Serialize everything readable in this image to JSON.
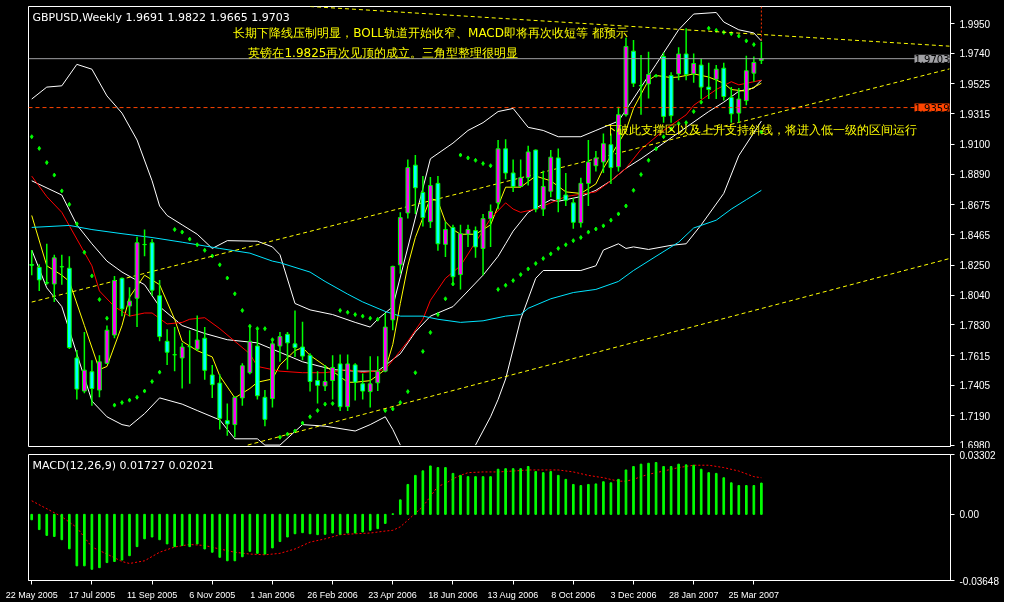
{
  "chart_data": [
    {
      "type": "candlestick",
      "title": "GBPUSD,Weekly  1.9691 1.9822 1.9665 1.9703",
      "tick_labels": "y",
      "x": [
        "2005-05-22",
        "2005-05-29",
        "2005-06-05",
        "2005-06-12",
        "2005-06-19",
        "2005-06-26",
        "2005-07-03",
        "2005-07-10",
        "2005-07-17",
        "2005-07-24",
        "2005-07-31",
        "2005-08-07",
        "2005-08-14",
        "2005-08-21",
        "2005-08-28",
        "2005-09-04",
        "2005-09-11",
        "2005-09-18",
        "2005-09-25",
        "2005-10-02",
        "2005-10-09",
        "2005-10-16",
        "2005-10-23",
        "2005-10-30",
        "2005-11-06",
        "2005-11-13",
        "2005-11-20",
        "2005-11-27",
        "2005-12-04",
        "2005-12-11",
        "2005-12-18",
        "2005-12-25",
        "2006-01-01",
        "2006-01-08",
        "2006-01-15",
        "2006-01-22",
        "2006-01-29",
        "2006-02-05",
        "2006-02-12",
        "2006-02-19",
        "2006-02-26",
        "2006-03-05",
        "2006-03-12",
        "2006-03-19",
        "2006-03-26",
        "2006-04-02",
        "2006-04-09",
        "2006-04-16",
        "2006-04-23",
        "2006-04-30",
        "2006-05-07",
        "2006-05-14",
        "2006-05-21",
        "2006-05-28",
        "2006-06-04",
        "2006-06-11",
        "2006-06-18",
        "2006-06-25",
        "2006-07-02",
        "2006-07-09",
        "2006-07-16",
        "2006-07-23",
        "2006-07-30",
        "2006-08-06",
        "2006-08-13",
        "2006-08-20",
        "2006-08-27",
        "2006-09-03",
        "2006-09-10",
        "2006-09-17",
        "2006-09-24",
        "2006-10-01",
        "2006-10-08",
        "2006-10-15",
        "2006-10-22",
        "2006-10-29",
        "2006-11-05",
        "2006-11-12",
        "2006-11-19",
        "2006-11-26",
        "2006-12-03",
        "2006-12-10",
        "2006-12-17",
        "2006-12-24",
        "2006-12-31",
        "2007-01-07",
        "2007-01-14",
        "2007-01-21",
        "2007-01-28",
        "2007-02-04",
        "2007-02-11",
        "2007-02-18",
        "2007-02-25",
        "2007-03-04",
        "2007-03-11",
        "2007-03-18",
        "2007-03-25",
        "2007-04-01"
      ],
      "ohlc": [
        [
          1.8255,
          1.8357,
          1.818,
          1.825
        ],
        [
          1.8235,
          1.8257,
          1.8069,
          1.8147
        ],
        [
          1.8127,
          1.8401,
          1.8113,
          1.8125
        ],
        [
          1.8118,
          1.8324,
          1.7992,
          1.8302
        ],
        [
          1.824,
          1.8324,
          1.8113,
          1.8239
        ],
        [
          1.8229,
          1.8313,
          1.766,
          1.7671
        ],
        [
          1.7598,
          1.7653,
          1.7306,
          1.7379
        ],
        [
          1.7365,
          1.7781,
          1.735,
          1.7512
        ],
        [
          1.7501,
          1.7582,
          1.7261,
          1.7383
        ],
        [
          1.7372,
          1.7616,
          1.7321,
          1.7571
        ],
        [
          1.756,
          1.7826,
          1.7556,
          1.7793
        ],
        [
          1.7759,
          1.8175,
          1.7737,
          1.8142
        ],
        [
          1.8158,
          1.8164,
          1.7892,
          1.7943
        ],
        [
          1.7963,
          1.8096,
          1.7892,
          1.7998
        ],
        [
          1.8018,
          1.845,
          1.7815,
          1.8408
        ],
        [
          1.8395,
          1.8501,
          1.8313,
          1.8396
        ],
        [
          1.8408,
          1.8434,
          1.8036,
          1.8074
        ],
        [
          1.8036,
          1.8147,
          1.7715,
          1.7748
        ],
        [
          1.7715,
          1.7799,
          1.7549,
          1.7638
        ],
        [
          1.7621,
          1.7815,
          1.7505,
          1.762
        ],
        [
          1.7598,
          1.7704,
          1.7383,
          1.7675
        ],
        [
          1.7677,
          1.7793,
          1.7416,
          1.7678
        ],
        [
          1.766,
          1.7897,
          1.7649,
          1.7724
        ],
        [
          1.7737,
          1.7815,
          1.7445,
          1.7511
        ],
        [
          1.7478,
          1.7549,
          1.7317,
          1.741
        ],
        [
          1.7421,
          1.7483,
          1.7095,
          1.7173
        ],
        [
          1.7157,
          1.7277,
          1.7051,
          1.7133
        ],
        [
          1.7129,
          1.7328,
          1.704,
          1.7321
        ],
        [
          1.7317,
          1.756,
          1.7261,
          1.7543
        ],
        [
          1.7494,
          1.7826,
          1.7483,
          1.7715
        ],
        [
          1.7682,
          1.7793,
          1.7306,
          1.7332
        ],
        [
          1.7321,
          1.7372,
          1.7118,
          1.7166
        ],
        [
          1.7312,
          1.7726,
          1.725,
          1.7697
        ],
        [
          1.7682,
          1.7781,
          1.7571,
          1.7748
        ],
        [
          1.7764,
          1.7781,
          1.7516,
          1.7704
        ],
        [
          1.7697,
          1.7932,
          1.7605,
          1.7671
        ],
        [
          1.7675,
          1.7852,
          1.7582,
          1.7611
        ],
        [
          1.7616,
          1.7631,
          1.7361,
          1.7432
        ],
        [
          1.7439,
          1.7505,
          1.7277,
          1.7405
        ],
        [
          1.7401,
          1.7549,
          1.7365,
          1.7432
        ],
        [
          1.7439,
          1.7616,
          1.7306,
          1.7531
        ],
        [
          1.7556,
          1.7622,
          1.7224,
          1.7255
        ],
        [
          1.7255,
          1.7622,
          1.7224,
          1.7556
        ],
        [
          1.7549,
          1.756,
          1.7299,
          1.7427
        ],
        [
          1.7416,
          1.7489,
          1.7306,
          1.7365
        ],
        [
          1.7361,
          1.7609,
          1.725,
          1.7416
        ],
        [
          1.7423,
          1.7609,
          1.7365,
          1.7505
        ],
        [
          1.7505,
          1.7914,
          1.7498,
          1.7815
        ],
        [
          1.7866,
          1.8246,
          1.7793,
          1.8242
        ],
        [
          1.8253,
          1.8622,
          1.8191,
          1.8585
        ],
        [
          1.8618,
          1.8994,
          1.8578,
          1.8937
        ],
        [
          1.8954,
          1.9025,
          1.8611,
          1.8795
        ],
        [
          1.8762,
          1.8877,
          1.8523,
          1.8585
        ],
        [
          1.8556,
          1.8871,
          1.8512,
          1.8811
        ],
        [
          1.8826,
          1.8877,
          1.8352,
          1.8401
        ],
        [
          1.8397,
          1.8556,
          1.8308,
          1.8501
        ],
        [
          1.8516,
          1.8534,
          1.8113,
          1.8169
        ],
        [
          1.8184,
          1.8534,
          1.808,
          1.8472
        ],
        [
          1.8468,
          1.8534,
          1.8379,
          1.8501
        ],
        [
          1.8494,
          1.8523,
          1.8302,
          1.8379
        ],
        [
          1.8368,
          1.8611,
          1.818,
          1.8578
        ],
        [
          1.8578,
          1.8678,
          1.8379,
          1.8629
        ],
        [
          1.8689,
          1.9131,
          1.8644,
          1.9069
        ],
        [
          1.9069,
          1.9136,
          1.8855,
          1.8899
        ],
        [
          1.8899,
          1.8994,
          1.8766,
          1.8804
        ],
        [
          1.8804,
          1.8994,
          1.8804,
          1.8866
        ],
        [
          1.8866,
          1.9091,
          1.8811,
          1.9047
        ],
        [
          1.906,
          1.9065,
          1.8622,
          1.8645
        ],
        [
          1.8645,
          1.8915,
          1.8596,
          1.8804
        ],
        [
          1.8771,
          1.906,
          1.8729,
          1.901
        ],
        [
          1.9005,
          1.9071,
          1.8622,
          1.8711
        ],
        [
          1.8744,
          1.8899,
          1.8667,
          1.8707
        ],
        [
          1.8689,
          1.8722,
          1.8507,
          1.8552
        ],
        [
          1.8549,
          1.8866,
          1.8516,
          1.8826
        ],
        [
          1.8826,
          1.9131,
          1.8667,
          1.8976
        ],
        [
          1.895,
          1.9054,
          1.891,
          1.9005
        ],
        [
          1.8976,
          1.9176,
          1.8899,
          1.9105
        ],
        [
          1.9098,
          1.9176,
          1.8822,
          1.8937
        ],
        [
          1.8943,
          1.9364,
          1.891,
          1.9309
        ],
        [
          1.9309,
          1.9851,
          1.9297,
          1.9789
        ],
        [
          1.9756,
          1.9835,
          1.9503,
          1.953
        ],
        [
          1.9514,
          1.9729,
          1.9309,
          1.9512
        ],
        [
          1.9525,
          1.9751,
          1.9423,
          1.9592
        ],
        [
          1.9581,
          1.9596,
          1.957,
          1.9583
        ],
        [
          1.9718,
          1.9747,
          1.9253,
          1.9297
        ],
        [
          1.9585,
          1.9607,
          1.9253,
          1.9302
        ],
        [
          1.9596,
          1.9784,
          1.9552,
          1.9736
        ],
        [
          1.9736,
          1.9917,
          1.9552,
          1.9592
        ],
        [
          1.9596,
          1.974,
          1.9534,
          1.9669
        ],
        [
          1.9658,
          1.9702,
          1.9419,
          1.9503
        ],
        [
          1.9503,
          1.9674,
          1.9419,
          1.9486
        ],
        [
          1.9558,
          1.9658,
          1.9419,
          1.9629
        ],
        [
          1.9636,
          1.9674,
          1.9408,
          1.9437
        ],
        [
          1.943,
          1.9503,
          1.9253,
          1.9315
        ],
        [
          1.932,
          1.9497,
          1.9253,
          1.9419
        ],
        [
          1.9408,
          1.9724,
          1.9375,
          1.9618
        ],
        [
          1.9601,
          1.9718,
          1.9541,
          1.9676
        ],
        [
          1.9691,
          1.9822,
          1.9665,
          1.9703
        ]
      ],
      "series": [
        {
          "type": "line",
          "color": "#ffffff",
          "x": [
            "2005-05-22",
            "2005-06-05",
            "2005-06-19",
            "2005-07-03",
            "2005-07-17",
            "2005-07-31",
            "2005-08-14",
            "2005-08-28",
            "2005-09-11",
            "2005-09-18",
            "2005-09-25",
            "2005-10-09",
            "2005-10-23",
            "2005-11-06",
            "2005-11-20",
            "2005-12-18",
            "2006-01-01",
            "2006-01-08",
            "2006-01-22",
            "2006-02-05",
            "2006-02-26",
            "2006-03-19",
            "2006-04-02",
            "2006-04-09",
            "2006-04-23",
            "2006-05-28",
            "2006-06-18",
            "2006-07-02",
            "2006-07-16",
            "2006-07-30",
            "2006-08-13",
            "2006-08-27",
            "2006-09-10",
            "2006-09-24",
            "2006-10-15",
            "2006-10-29",
            "2006-11-19",
            "2006-11-26",
            "2006-12-24",
            "2007-01-14",
            "2007-01-28",
            "2007-02-18",
            "2007-02-25",
            "2007-03-11",
            "2007-03-25",
            "2007-04-01"
          ],
          "values": [
            1.9419,
            1.9503,
            1.9512,
            1.9663,
            1.9629,
            1.9441,
            1.932,
            1.9131,
            1.8844,
            1.8667,
            1.86,
            1.8534,
            1.8468,
            1.8368,
            1.8423,
            1.8419,
            1.8379,
            1.8324,
            1.7981,
            1.7936,
            1.7903,
            1.7848,
            1.7815,
            1.787,
            1.7959,
            1.8999,
            1.9109,
            1.9198,
            1.9253,
            1.9331,
            1.9353,
            1.922,
            1.9198,
            1.9154,
            1.9154,
            1.9198,
            1.9264,
            1.9342,
            1.9663,
            1.9906,
            2.0017,
            2.0028,
            1.9961,
            1.9906,
            1.9884,
            1.9828
          ]
        },
        {
          "type": "line",
          "color": "#ffffff",
          "x": [
            "2005-05-22",
            "2005-06-19",
            "2005-07-03",
            "2005-07-17",
            "2005-07-31",
            "2005-08-14",
            "2005-09-04",
            "2005-09-18",
            "2005-10-09",
            "2005-10-30",
            "2005-11-20",
            "2005-12-18",
            "2006-01-01",
            "2006-01-29",
            "2006-02-26",
            "2006-03-19",
            "2006-04-09",
            "2006-04-30",
            "2006-05-14",
            "2006-05-28",
            "2006-06-18",
            "2006-07-02",
            "2006-07-16",
            "2006-07-30",
            "2006-08-06",
            "2006-08-13",
            "2006-08-27",
            "2006-09-17",
            "2006-09-24",
            "2006-10-15",
            "2006-10-29",
            "2006-11-12",
            "2006-11-26",
            "2006-12-10",
            "2006-12-31",
            "2007-01-21",
            "2007-02-11",
            "2007-02-25",
            "2007-03-11",
            "2007-03-25",
            "2007-04-01"
          ],
          "values": [
            1.8844,
            1.8744,
            1.8534,
            1.8401,
            1.8279,
            1.8202,
            1.8113,
            1.7959,
            1.7826,
            1.777,
            1.7726,
            1.7704,
            1.766,
            1.7571,
            1.7516,
            1.7505,
            1.7505,
            1.7627,
            1.7781,
            1.7892,
            1.7959,
            1.8069,
            1.818,
            1.8313,
            1.8401,
            1.849,
            1.8622,
            1.8711,
            1.87,
            1.8733,
            1.8777,
            1.8844,
            1.8932,
            1.8999,
            1.9109,
            1.922,
            1.9331,
            1.9397,
            1.9474,
            1.9497,
            1.9552
          ]
        },
        {
          "type": "line",
          "color": "#ffffff",
          "x": [
            "2005-05-22",
            "2005-06-05",
            "2005-06-19",
            "2005-07-03",
            "2005-07-17",
            "2005-07-31",
            "2005-08-14",
            "2005-08-21",
            "2005-09-04",
            "2005-09-18",
            "2005-10-09",
            "2005-10-23",
            "2005-11-13",
            "2005-11-27",
            "2005-12-18",
            "2005-12-25",
            "2006-01-08",
            "2006-01-29",
            "2006-02-19",
            "2006-03-19",
            "2006-04-02",
            "2006-04-16",
            "2006-04-23",
            "2006-04-30",
            "2006-06-04",
            "2006-07-09",
            "2006-07-23",
            "2006-07-30",
            "2006-08-06",
            "2006-08-20",
            "2006-09-03",
            "2006-09-10",
            "2006-10-15",
            "2006-10-29",
            "2006-11-05",
            "2006-11-19",
            "2006-11-26",
            "2006-12-03",
            "2006-12-17",
            "2007-01-07",
            "2007-01-21",
            "2007-02-04",
            "2007-02-25",
            "2007-03-11",
            "2007-04-01"
          ],
          "values": [
            1.8357,
            1.8091,
            1.7959,
            1.7627,
            1.7295,
            1.7184,
            1.7129,
            1.7118,
            1.7206,
            1.7317,
            1.7273,
            1.7228,
            1.7162,
            1.7029,
            1.7029,
            1.6985,
            1.6985,
            1.7129,
            1.7118,
            1.7084,
            1.7129,
            1.7184,
            1.7095,
            1.6985,
            null,
            1.6985,
            1.7184,
            1.7306,
            1.745,
            1.787,
            1.8158,
            1.8213,
            1.8213,
            1.8246,
            1.8357,
            1.8401,
            1.8368,
            1.8379,
            1.8361,
            1.839,
            1.8401,
            1.8534,
            1.8755,
            1.9021,
            1.9264
          ]
        },
        {
          "type": "line",
          "color": "#ffff00",
          "x": [
            "2005-05-22",
            "2005-06-05",
            "2005-06-19",
            "2005-06-26",
            "2005-07-10",
            "2005-07-24",
            "2005-07-31",
            "2005-08-14",
            "2005-08-21",
            "2005-09-04",
            "2005-09-18",
            "2005-10-02",
            "2005-10-09",
            "2005-10-23",
            "2005-11-06",
            "2005-11-13",
            "2005-11-27",
            "2005-12-11",
            "2005-12-18",
            "2006-01-01",
            "2006-01-08",
            "2006-01-22",
            "2006-01-29",
            "2006-02-05",
            "2006-02-26",
            "2006-03-12",
            "2006-03-19",
            "2006-04-02",
            "2006-04-16",
            "2006-04-23",
            "2006-04-30",
            "2006-05-07",
            "2006-05-14",
            "2006-05-28",
            "2006-06-04",
            "2006-06-11",
            "2006-06-18",
            "2006-06-25",
            "2006-07-09",
            "2006-07-23",
            "2006-08-06",
            "2006-08-20",
            "2006-09-03",
            "2006-09-17",
            "2006-10-01",
            "2006-10-15",
            "2006-10-29",
            "2006-11-05",
            "2006-11-26",
            "2006-12-03",
            "2006-12-17",
            "2006-12-24",
            "2007-01-07",
            "2007-01-14",
            "2007-01-28",
            "2007-02-11",
            "2007-02-25",
            "2007-03-04",
            "2007-03-18",
            "2007-04-01"
          ],
          "values": [
            1.86,
            1.8246,
            1.818,
            1.8136,
            1.7826,
            1.7516,
            1.7538,
            1.7826,
            1.8025,
            1.818,
            1.8113,
            1.787,
            1.7715,
            1.7649,
            1.7605,
            1.7472,
            1.7317,
            1.7383,
            1.7427,
            1.745,
            1.7549,
            1.7649,
            1.7671,
            1.7616,
            1.7505,
            1.7427,
            1.7427,
            1.7438,
            1.7516,
            1.7693,
            1.7981,
            1.8246,
            1.8445,
            1.8722,
            1.87,
            1.8556,
            1.8501,
            1.8468,
            1.8468,
            1.8534,
            1.8799,
            1.8799,
            1.8877,
            1.8844,
            1.8766,
            1.8755,
            1.8822,
            1.8932,
            1.9198,
            1.9353,
            1.9552,
            1.9585,
            1.957,
            1.9574,
            1.9596,
            1.9574,
            1.953,
            1.9486,
            1.9474,
            1.953
          ]
        },
        {
          "type": "line",
          "color": "#ff0000",
          "x": [
            "2005-05-22",
            "2005-06-05",
            "2005-06-19",
            "2005-07-03",
            "2005-07-17",
            "2005-07-24",
            "2005-08-07",
            "2005-08-21",
            "2005-09-04",
            "2005-09-11",
            "2005-09-25",
            "2005-10-09",
            "2005-10-16",
            "2005-10-30",
            "2005-11-13",
            "2005-11-27",
            "2005-12-11",
            "2005-12-18",
            "2006-01-01",
            "2006-01-08",
            "2006-01-29",
            "2006-02-19",
            "2006-03-12",
            "2006-03-26",
            "2006-04-16",
            "2006-04-23",
            "2006-05-07",
            "2006-05-21",
            "2006-05-28",
            "2006-06-11",
            "2006-06-25",
            "2006-07-23",
            "2006-08-06",
            "2006-08-13",
            "2006-08-20",
            "2006-09-03",
            "2006-09-17",
            "2006-10-01",
            "2006-10-29",
            "2006-11-12",
            "2006-11-26",
            "2006-12-10",
            "2006-12-31",
            "2007-01-21",
            "2007-01-28",
            "2007-02-18",
            "2007-03-04",
            "2007-03-11",
            "2007-03-18",
            "2007-04-01"
          ],
          "values": [
            1.8877,
            1.8733,
            1.8622,
            1.8434,
            1.8246,
            1.8069,
            1.7959,
            1.7892,
            1.7914,
            1.7914,
            1.7837,
            1.7848,
            1.787,
            1.7881,
            1.7804,
            1.7715,
            1.7627,
            1.7538,
            1.7516,
            1.7505,
            1.7494,
            1.7494,
            1.7516,
            1.7494,
            1.7516,
            1.7582,
            1.7715,
            1.787,
            1.8003,
            1.8158,
            1.8246,
            1.8578,
            1.8689,
            1.8645,
            1.8622,
            1.8645,
            1.8689,
            1.8733,
            1.8766,
            1.8844,
            1.8932,
            1.9065,
            1.9198,
            1.9308,
            1.9375,
            1.9486,
            1.9541,
            1.9519,
            1.953,
            1.9552
          ]
        },
        {
          "type": "line",
          "color": "#00e5ff",
          "x": [
            "2005-05-22",
            "2005-06-26",
            "2005-07-17",
            "2005-08-14",
            "2005-09-11",
            "2005-10-09",
            "2005-11-13",
            "2005-12-11",
            "2006-01-01",
            "2006-01-08",
            "2006-02-05",
            "2006-02-19",
            "2006-03-12",
            "2006-03-26",
            "2006-04-16",
            "2006-04-30",
            "2006-05-21",
            "2006-06-04",
            "2006-06-25",
            "2006-07-16",
            "2006-08-06",
            "2006-08-20",
            "2006-08-27",
            "2006-09-17",
            "2006-10-08",
            "2006-10-29",
            "2006-11-19",
            "2006-12-03",
            "2006-12-24",
            "2007-01-14",
            "2007-01-28",
            "2007-02-18",
            "2007-03-04",
            "2007-03-18",
            "2007-04-01"
          ],
          "values": [
            1.8516,
            1.853,
            1.8501,
            1.8472,
            1.8445,
            1.8412,
            1.8368,
            1.8335,
            1.8279,
            1.8268,
            1.8202,
            1.8136,
            1.8047,
            1.7992,
            1.7925,
            1.7892,
            1.7892,
            1.787,
            1.7848,
            1.7859,
            1.7892,
            1.7903,
            1.7947,
            1.8014,
            1.8058,
            1.808,
            1.8136,
            1.8213,
            1.8313,
            1.8412,
            1.8512,
            1.8567,
            1.8645,
            1.8711,
            1.8777
          ]
        },
        {
          "type": "scatter",
          "color": "#00ff00",
          "marker": "diamond",
          "values": [
            1.9154,
            1.9072,
            1.8972,
            1.8884,
            1.8773,
            1.8678,
            1.8541,
            1.8341,
            1.8175,
            1.8009,
            1.7877,
            1.7266,
            1.7284,
            1.7301,
            1.7321,
            1.7365,
            1.7432,
            1.7498,
            null,
            1.8501,
            1.8483,
            1.8434,
            1.8394,
            1.8355,
            1.8315,
            1.8253,
            1.816,
            1.8049,
            1.7932,
            1.7821,
            1.7804,
            1.7804,
            1.7726,
            1.704,
            1.7062,
            1.7084,
            1.714,
            1.7184,
            1.7228,
            1.7273,
            1.7277,
            1.7932,
            1.7919,
            1.7903,
            1.7892,
            1.7877,
            1.787,
            1.7228,
            1.7239,
            1.7284,
            1.7361,
            1.7494,
            1.7644,
            1.7777,
            1.7903,
            1.8014,
            1.8118,
            1.9025,
            1.9005,
            1.8988,
            1.8965,
            1.895,
            1.808,
            1.8109,
            1.8142,
            1.8184,
            1.8224,
            1.8262,
            1.8297,
            1.833,
            1.8368,
            1.8394,
            1.8423,
            1.8445,
            1.8483,
            1.8505,
            1.8527,
            1.8567,
            1.8611,
            1.8667,
            1.8777,
            1.8888,
            1.8988,
            1.9069,
            1.9154,
            1.9209,
            1.9246,
            1.9253,
            1.9331,
            1.9397,
            1.9917,
            1.9902,
            1.9888,
            1.9879,
            1.9862,
            1.9828,
            1.9802,
            1.9187
          ]
        },
        {
          "type": "line",
          "color": "#ffff00",
          "line_style": "dashed",
          "x": [
            "2006-02-05",
            "2007-09-23"
          ],
          "values": [
            2.007,
            1.9791
          ]
        },
        {
          "type": "line",
          "color": "#ffff00",
          "line_style": "dashed",
          "x": [
            "2005-05-22",
            "2007-09-23"
          ],
          "values": [
            1.7991,
            1.9631
          ]
        },
        {
          "type": "line",
          "color": "#ffff00",
          "line_style": "dashed",
          "x": [
            "2005-12-09",
            "2007-09-23"
          ],
          "values": [
            1.6985,
            1.8297
          ]
        },
        {
          "type": "line",
          "color": "#ff3300",
          "line_style": "dotted",
          "x": [
            "2007-04-01",
            "2007-04-01"
          ],
          "values": [
            2.007,
            1.9822
          ]
        }
      ],
      "xlim": [
        "2005-05-19",
        "2007-09-24"
      ],
      "ylim": [
        1.6975,
        2.007
      ],
      "yticks": [
        {
          "value": 1.995,
          "label": "1.9950"
        },
        {
          "value": 1.974,
          "label": "1.9740"
        },
        1.9525,
        1.9315,
        {
          "value": 1.91,
          "label": "1.9100"
        },
        {
          "value": 1.889,
          "label": "1.8890"
        },
        1.8675,
        1.8465,
        {
          "value": 1.825,
          "label": "1.8250"
        },
        {
          "value": 1.804,
          "label": "1.8040"
        },
        {
          "value": 1.783,
          "label": "1.7830"
        },
        1.7615,
        1.7405,
        {
          "value": 1.719,
          "label": "1.7190"
        },
        {
          "value": 1.698,
          "label": "1.6980"
        }
      ],
      "ref_lines": [
        {
          "axis": "y",
          "value": 1.9703,
          "label": "1.9703",
          "color": "#a0a0a4"
        },
        {
          "axis": "y",
          "value": 1.9359,
          "label": "1.9359",
          "color": "#ff4500",
          "line_style": "dashed"
        }
      ],
      "annotations": [
        "长期下降线压制明显，BOLL轨道开始收窄、MACD即将再次收短等 都预示",
        "英镑在1.9825再次见顶的成立。三角型整理很明显",
        "下破此支撑区以及上升支持斜线，将进入低一级的区间运行"
      ]
    },
    {
      "type": "bar",
      "title": "MACD(12,26,9) 0.01727 0.02021",
      "color": "#00ff00",
      "x": [
        "2005-05-22",
        "2005-05-29",
        "2005-06-05",
        "2005-06-12",
        "2005-06-19",
        "2005-06-26",
        "2005-07-03",
        "2005-07-10",
        "2005-07-17",
        "2005-07-24",
        "2005-07-31",
        "2005-08-07",
        "2005-08-14",
        "2005-08-21",
        "2005-08-28",
        "2005-09-04",
        "2005-09-11",
        "2005-09-18",
        "2005-09-25",
        "2005-10-02",
        "2005-10-09",
        "2005-10-16",
        "2005-10-23",
        "2005-10-30",
        "2005-11-06",
        "2005-11-13",
        "2005-11-20",
        "2005-11-27",
        "2005-12-04",
        "2005-12-11",
        "2005-12-18",
        "2005-12-25",
        "2006-01-01",
        "2006-01-08",
        "2006-01-15",
        "2006-01-22",
        "2006-01-29",
        "2006-02-05",
        "2006-02-12",
        "2006-02-19",
        "2006-02-26",
        "2006-03-05",
        "2006-03-12",
        "2006-03-19",
        "2006-03-26",
        "2006-04-02",
        "2006-04-09",
        "2006-04-16",
        "2006-04-23",
        "2006-04-30",
        "2006-05-07",
        "2006-05-14",
        "2006-05-21",
        "2006-05-28",
        "2006-06-04",
        "2006-06-11",
        "2006-06-18",
        "2006-06-25",
        "2006-07-02",
        "2006-07-09",
        "2006-07-16",
        "2006-07-23",
        "2006-07-30",
        "2006-08-06",
        "2006-08-13",
        "2006-08-20",
        "2006-08-27",
        "2006-09-03",
        "2006-09-10",
        "2006-09-17",
        "2006-09-24",
        "2006-10-01",
        "2006-10-08",
        "2006-10-15",
        "2006-10-22",
        "2006-10-29",
        "2006-11-05",
        "2006-11-12",
        "2006-11-19",
        "2006-11-26",
        "2006-12-03",
        "2006-12-10",
        "2006-12-17",
        "2006-12-24",
        "2006-12-31",
        "2007-01-07",
        "2007-01-14",
        "2007-01-21",
        "2007-01-28",
        "2007-02-04",
        "2007-02-11",
        "2007-02-18",
        "2007-02-25",
        "2007-03-04",
        "2007-03-11",
        "2007-03-18",
        "2007-03-25",
        "2007-04-01"
      ],
      "values": [
        -0.003,
        -0.0084,
        -0.0116,
        -0.0122,
        -0.014,
        -0.019,
        -0.0284,
        -0.0284,
        -0.0303,
        -0.0294,
        -0.0266,
        -0.026,
        -0.0252,
        -0.0228,
        -0.0178,
        -0.0135,
        -0.0125,
        -0.014,
        -0.0163,
        -0.0178,
        -0.0172,
        -0.0178,
        -0.0163,
        -0.0191,
        -0.0209,
        -0.0237,
        -0.0256,
        -0.0256,
        -0.0234,
        -0.0204,
        -0.0215,
        -0.0219,
        -0.0185,
        -0.015,
        -0.0125,
        -0.0107,
        -0.0101,
        -0.0107,
        -0.0112,
        -0.011,
        -0.0103,
        -0.011,
        -0.0103,
        -0.0103,
        -0.0097,
        -0.0088,
        -0.0079,
        -0.005,
        0.0003,
        0.008,
        0.0165,
        0.0215,
        0.024,
        0.0267,
        0.0258,
        0.0258,
        0.0226,
        0.0215,
        0.0208,
        0.0208,
        0.0208,
        0.0208,
        0.0249,
        0.0252,
        0.0252,
        0.0252,
        0.0264,
        0.0236,
        0.023,
        0.0236,
        0.0215,
        0.0193,
        0.0165,
        0.0159,
        0.0165,
        0.0168,
        0.018,
        0.0174,
        0.0193,
        0.0245,
        0.0264,
        0.0277,
        0.0282,
        0.0286,
        0.0264,
        0.0264,
        0.0277,
        0.0273,
        0.0271,
        0.0249,
        0.023,
        0.0226,
        0.0202,
        0.0174,
        0.0159,
        0.0159,
        0.0159,
        0.01727
      ],
      "series": [
        {
          "type": "line",
          "color": "#ff0000",
          "line_style": "dotted",
          "x": [
            "2005-05-22",
            "2005-06-19",
            "2005-07-03",
            "2005-07-17",
            "2005-07-31",
            "2005-08-14",
            "2005-08-21",
            "2005-09-04",
            "2005-09-18",
            "2005-10-02",
            "2005-10-16",
            "2005-10-30",
            "2005-11-13",
            "2005-11-27",
            "2005-12-11",
            "2005-12-25",
            "2006-01-08",
            "2006-01-22",
            "2006-02-05",
            "2006-02-19",
            "2006-03-05",
            "2006-03-19",
            "2006-04-02",
            "2006-04-16",
            "2006-04-23",
            "2006-04-30",
            "2006-05-07",
            "2006-05-14",
            "2006-05-21",
            "2006-05-28",
            "2006-06-04",
            "2006-06-11",
            "2006-06-18",
            "2006-06-25",
            "2006-07-02",
            "2006-07-16",
            "2006-07-30",
            "2006-08-13",
            "2006-08-27",
            "2006-09-10",
            "2006-09-24",
            "2006-10-08",
            "2006-10-22",
            "2006-11-05",
            "2006-11-19",
            "2006-11-26",
            "2006-12-03",
            "2006-12-10",
            "2006-12-17",
            "2006-12-31",
            "2007-01-14",
            "2007-01-28",
            "2007-02-11",
            "2007-02-25",
            "2007-03-11",
            "2007-03-25",
            "2007-04-01"
          ],
          "values": [
            0.0075,
            -0.0013,
            -0.0073,
            -0.018,
            -0.0219,
            -0.026,
            -0.0271,
            -0.0256,
            -0.0209,
            -0.018,
            -0.0166,
            -0.0172,
            -0.0191,
            -0.0209,
            -0.0219,
            -0.0223,
            -0.0215,
            -0.0191,
            -0.0153,
            -0.0135,
            -0.0112,
            -0.0107,
            -0.0103,
            -0.0092,
            -0.0088,
            -0.0069,
            -0.0032,
            0.0006,
            0.0043,
            0.0099,
            0.0155,
            0.017,
            0.0196,
            0.0215,
            0.023,
            0.0234,
            0.0234,
            0.0239,
            0.0245,
            0.0245,
            0.0245,
            0.0234,
            0.0215,
            0.0202,
            0.0183,
            0.0183,
            0.0193,
            0.0208,
            0.0221,
            0.0239,
            0.0258,
            0.0271,
            0.0271,
            0.0258,
            0.0239,
            0.0208,
            0.02021
          ]
        }
      ],
      "xlim": [
        "2005-05-19",
        "2007-09-24"
      ],
      "ylim": [
        -0.03648,
        0.03302
      ],
      "yticks": [
        0.03302,
        {
          "value": 0,
          "label": "0.00"
        },
        -0.03648
      ],
      "xticks": [
        {
          "value": "2005-05-22",
          "label": "22 May 2005"
        },
        {
          "value": "2005-07-17",
          "label": "17 Jul 2005"
        },
        {
          "value": "2005-09-11",
          "label": "11 Sep 2005"
        },
        {
          "value": "2005-11-06",
          "label": "6 Nov 2005"
        },
        {
          "value": "2006-01-01",
          "label": "1 Jan 2006"
        },
        {
          "value": "2006-02-26",
          "label": "26 Feb 2006"
        },
        {
          "value": "2006-04-23",
          "label": "23 Apr 2006"
        },
        {
          "value": "2006-06-18",
          "label": "18 Jun 2006"
        },
        {
          "value": "2006-08-13",
          "label": "13 Aug 2006"
        },
        {
          "value": "2006-10-08",
          "label": "8 Oct 2006"
        },
        {
          "value": "2006-12-03",
          "label": "3 Dec 2006"
        },
        {
          "value": "2007-01-28",
          "label": "28 Jan 2007"
        },
        {
          "value": "2007-03-25",
          "label": "25 Mar 2007"
        }
      ]
    }
  ]
}
